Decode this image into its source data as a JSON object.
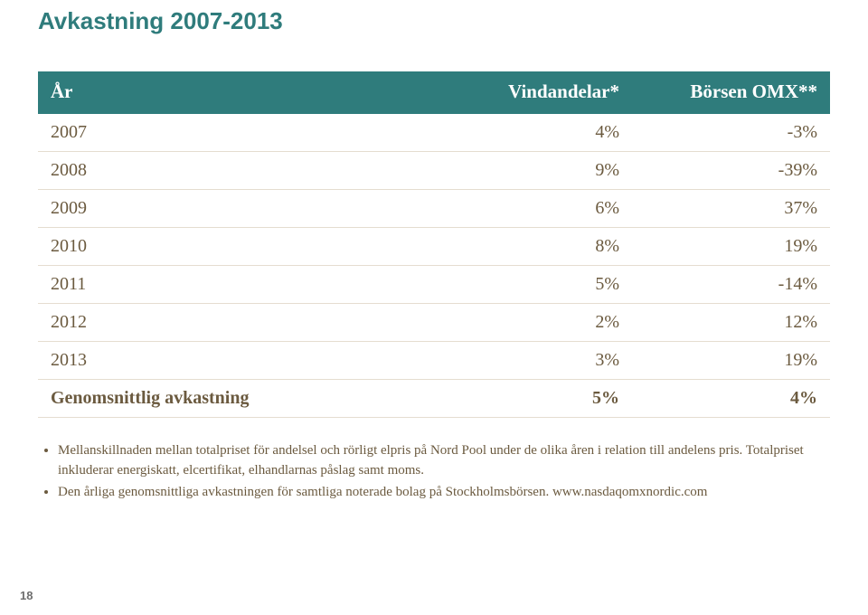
{
  "title": "Avkastning 2007-2013",
  "title_color": "#2f7c7c",
  "table": {
    "header_bg": "#2f7c7c",
    "header_fg": "#ffffff",
    "row_color": "#6b5a3f",
    "border_color": "#e5ddd0",
    "col_widths": [
      "50%",
      "25%",
      "25%"
    ],
    "columns": [
      "År",
      "Vindandelar*",
      "Börsen OMX**"
    ],
    "rows": [
      [
        "2007",
        "4%",
        "-3%"
      ],
      [
        "2008",
        "9%",
        "-39%"
      ],
      [
        "2009",
        "6%",
        "37%"
      ],
      [
        "2010",
        "8%",
        "19%"
      ],
      [
        "2011",
        "5%",
        "-14%"
      ],
      [
        "2012",
        "2%",
        "12%"
      ],
      [
        "2013",
        "3%",
        "19%"
      ]
    ],
    "footer": [
      "Genomsnittlig avkastning",
      "5%",
      "4%"
    ]
  },
  "notes": {
    "text_color": "#6b5a3f",
    "items": [
      "Mellanskillnaden mellan totalpriset för andelsel och rörligt elpris på Nord Pool under de olika åren i relation till andelens pris. Totalpriset inkluderar energiskatt, elcertifikat, elhandlarnas påslag samt moms.",
      "Den årliga genomsnittliga avkastningen för samtliga noterade bolag på Stockholmsbörsen. www.nasdaqomxnordic.com"
    ]
  },
  "page_number": "18",
  "page_number_color": "#6e6e6e"
}
